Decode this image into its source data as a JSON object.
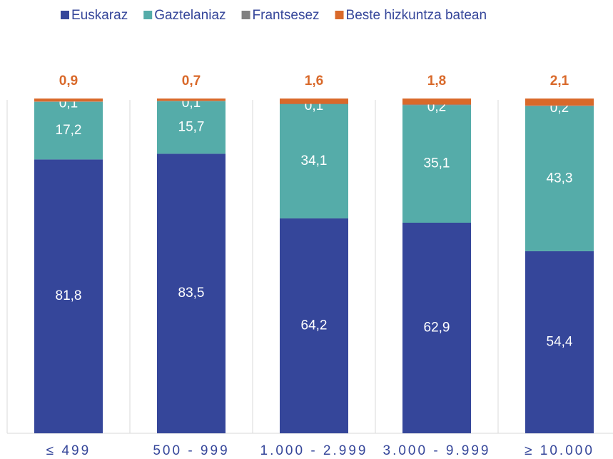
{
  "chart_data": {
    "type": "stacked_bar",
    "categories": [
      "≤ 499",
      "500 - 999",
      "1.000 - 2.999",
      "3.000 - 9.999",
      "≥ 10.000"
    ],
    "series": [
      {
        "name": "Euskaraz",
        "color": "#35469a",
        "values": [
          81.8,
          83.5,
          64.2,
          62.9,
          54.4
        ],
        "value_labels": [
          "81,8",
          "83,5",
          "64,2",
          "62,9",
          "54,4"
        ]
      },
      {
        "name": "Gaztelaniaz",
        "color": "#55aca9",
        "values": [
          17.2,
          15.7,
          34.1,
          35.1,
          43.3
        ],
        "value_labels": [
          "17,2",
          "15,7",
          "34,1",
          "35,1",
          "43,3"
        ]
      },
      {
        "name": "Frantsesez",
        "color": "#808080",
        "values": [
          0.1,
          0.1,
          0.1,
          0.2,
          0.2
        ],
        "value_labels": [
          "0,1",
          "0,1",
          "0,1",
          "0,2",
          "0,2"
        ]
      },
      {
        "name": "Beste hizkuntza batean",
        "color": "#d9692a",
        "values": [
          0.9,
          0.7,
          1.6,
          1.8,
          2.1
        ],
        "value_labels": [
          "0,9",
          "0,7",
          "1,6",
          "1,8",
          "2,1"
        ]
      }
    ],
    "ylim": [
      0,
      100
    ]
  }
}
